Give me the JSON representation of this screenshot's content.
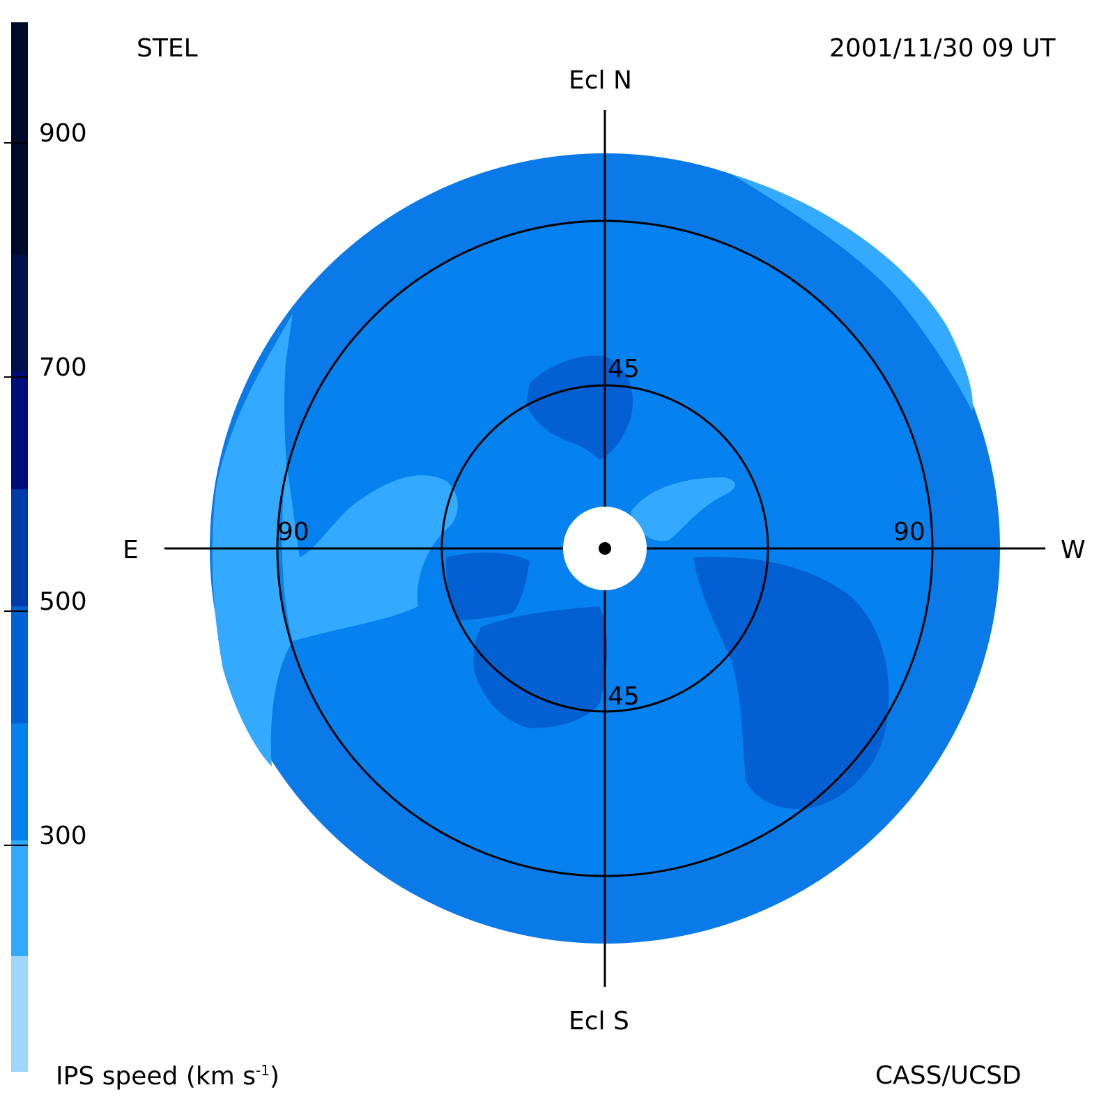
{
  "header": {
    "station": "STEL",
    "timestamp": "2001/11/30 09 UT"
  },
  "footer": {
    "colorbar_title": "IPS speed (km s",
    "colorbar_title_exp": "-1",
    "colorbar_title_end": ")",
    "credit": "CASS/UCSD"
  },
  "compass": {
    "north": "Ecl N",
    "south": "Ecl S",
    "east": "E",
    "west": "W"
  },
  "rings": {
    "inner_label_top": "45",
    "inner_label_bottom": "45",
    "outer_label_left": "90",
    "outer_label_right": "90"
  },
  "colorbar": {
    "ticks": [
      "900",
      "700",
      "500",
      "300"
    ],
    "colors_top_to_bottom": [
      "#000a2a",
      "#00104d",
      "#000d78",
      "#003aa8",
      "#0062d2",
      "#0082f0",
      "#30aaff",
      "#9ed6ff"
    ]
  },
  "map_colors": {
    "background": "#ffffff",
    "outer_band": "#0a7ae8",
    "main": "#0582f0",
    "fast": "#0360d2",
    "slow": "#33aaff",
    "occulter": "#ffffff",
    "grid": "#000000"
  }
}
